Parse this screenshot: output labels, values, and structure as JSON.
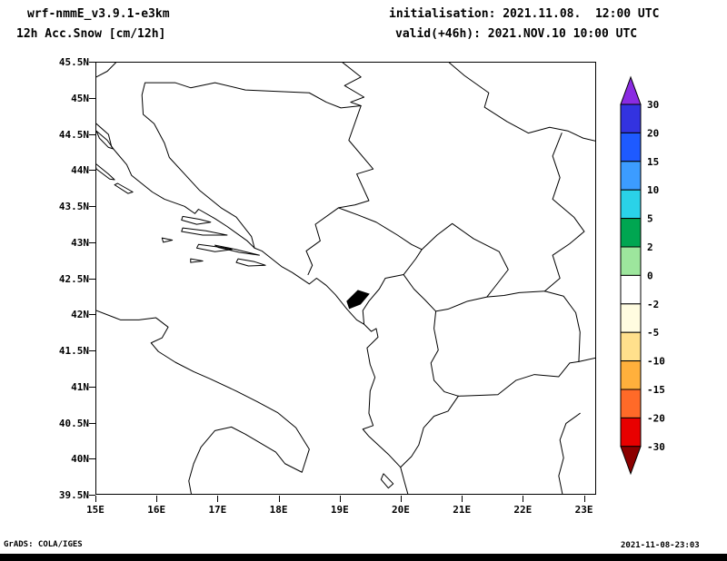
{
  "header": {
    "model": "wrf-nmmE_v3.9.1-e3km",
    "variable": "12h Acc.Snow [cm/12h]",
    "init_label": "initialisation: 2021.11.08.  12:00 UTC",
    "valid_label": "valid(+46h): 2021.NOV.10 10:00 UTC"
  },
  "axes": {
    "lat_ticks": [
      "45.5N",
      "45N",
      "44.5N",
      "44N",
      "43.5N",
      "43N",
      "42.5N",
      "42N",
      "41.5N",
      "41N",
      "40.5N",
      "40N",
      "39.5N"
    ],
    "lon_ticks": [
      "15E",
      "16E",
      "17E",
      "18E",
      "19E",
      "20E",
      "21E",
      "22E",
      "23E"
    ]
  },
  "colorbar": {
    "labels": [
      "30",
      "20",
      "15",
      "10",
      "5",
      "2",
      "0",
      "-2",
      "-5",
      "-10",
      "-15",
      "-20",
      "-30"
    ],
    "colors": [
      "#8a2be2",
      "#3333e0",
      "#1e5aff",
      "#3c9cff",
      "#2ad2e8",
      "#00a651",
      "#9de69d",
      "#ffffff",
      "#fffce0",
      "#ffe08c",
      "#ffb03c",
      "#ff6a28",
      "#e80000",
      "#8c0000"
    ]
  },
  "footer": {
    "credit": "GrADS: COLA/IGES",
    "timestamp": "2021-11-08-23:03"
  },
  "chart_data": {
    "type": "heatmap",
    "title": "12h Acc.Snow [cm/12h]",
    "model": "wrf-nmmE_v3.9.1-e3km",
    "initialisation": "2021.11.08. 12:00 UTC",
    "valid": "valid(+46h): 2021.NOV.10 10:00 UTC",
    "xlabel": "",
    "ylabel": "",
    "xlim": [
      15.0,
      23.2
    ],
    "ylim": [
      39.5,
      45.5
    ],
    "x_tick_labels": [
      "15E",
      "16E",
      "17E",
      "18E",
      "19E",
      "20E",
      "21E",
      "22E",
      "23E"
    ],
    "y_tick_labels": [
      "45.5N",
      "45N",
      "44.5N",
      "44N",
      "43.5N",
      "43N",
      "42.5N",
      "42N",
      "41.5N",
      "41N",
      "40.5N",
      "40N",
      "39.5N"
    ],
    "legend_position": "right",
    "colorbar_levels": [
      30,
      20,
      15,
      10,
      5,
      2,
      0,
      -2,
      -5,
      -10,
      -15,
      -20,
      -30
    ],
    "colorbar_colors": [
      "#8a2be2",
      "#3333e0",
      "#1e5aff",
      "#3c9cff",
      "#2ad2e8",
      "#00a651",
      "#9de69d",
      "#ffffff",
      "#fffce0",
      "#ffe08c",
      "#ffb03c",
      "#ff6a28",
      "#e80000",
      "#8c0000"
    ],
    "values": "no filled contours anywhere in the domain; accumulated snow is approximately 0 cm (blank white map with coastlines and country borders only)",
    "region": "Balkans / Adriatic (15E-23E, 39.5N-45.5N)",
    "grid": false
  }
}
